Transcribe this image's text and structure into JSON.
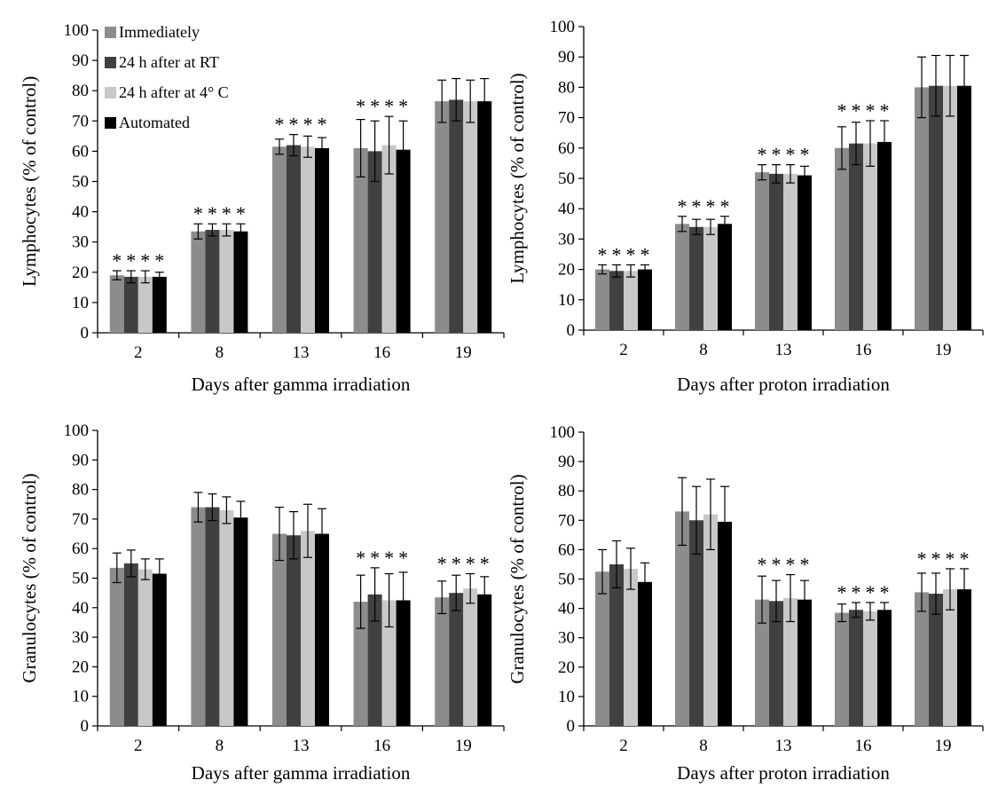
{
  "colors": {
    "series": [
      "#8c8c8c",
      "#404040",
      "#c8c8c8",
      "#000000"
    ],
    "axis": "#000000"
  },
  "legend": {
    "items": [
      "Immediately",
      "24 h after at RT",
      "24 h after at 4° C",
      "Automated"
    ]
  },
  "significance_marker": "*",
  "chart_data": [
    {
      "type": "bar",
      "ylabel": "Lymphocytes (% of control)",
      "xlabel": "Days after gamma irradiation",
      "categories": [
        "2",
        "8",
        "13",
        "16",
        "19"
      ],
      "ylim": [
        0,
        100
      ],
      "yticks": [
        0,
        10,
        20,
        30,
        40,
        50,
        60,
        70,
        80,
        90,
        100
      ],
      "grid": false,
      "legend_position": "top-left",
      "series": [
        {
          "name": "Immediately",
          "values": [
            19,
            33.5,
            61.5,
            61,
            76.5
          ],
          "errors": [
            1.5,
            2.5,
            2.5,
            9.5,
            7
          ]
        },
        {
          "name": "24 h after at RT",
          "values": [
            18.5,
            34,
            62,
            60,
            77
          ],
          "errors": [
            2,
            2,
            3.5,
            10,
            7
          ]
        },
        {
          "name": "24 h after at 4° C",
          "values": [
            18.5,
            34,
            61.5,
            62,
            76.5
          ],
          "errors": [
            2,
            2,
            3.5,
            9.5,
            7
          ]
        },
        {
          "name": "Automated",
          "values": [
            18.5,
            33.5,
            61,
            60.5,
            76.5
          ],
          "errors": [
            1.5,
            2.5,
            3.5,
            9.5,
            7.5
          ]
        }
      ],
      "significant": [
        true,
        true,
        true,
        true,
        false
      ]
    },
    {
      "type": "bar",
      "ylabel": "Lymphocytes (% of control)",
      "xlabel": "Days after proton irradiation",
      "categories": [
        "2",
        "8",
        "13",
        "16",
        "19"
      ],
      "ylim": [
        0,
        100
      ],
      "yticks": [
        0,
        10,
        20,
        30,
        40,
        50,
        60,
        70,
        80,
        90,
        100
      ],
      "grid": false,
      "series": [
        {
          "name": "Immediately",
          "values": [
            20,
            35,
            52,
            60,
            80
          ],
          "errors": [
            1.5,
            2.5,
            2.5,
            7,
            10
          ]
        },
        {
          "name": "24 h after at RT",
          "values": [
            19.5,
            34,
            51.5,
            61.5,
            80.5
          ],
          "errors": [
            2,
            2.5,
            3,
            7,
            10
          ]
        },
        {
          "name": "24 h after at 4° C",
          "values": [
            19.5,
            34,
            51.5,
            61.5,
            80.5
          ],
          "errors": [
            2,
            2.5,
            3,
            7.5,
            10
          ]
        },
        {
          "name": "Automated",
          "values": [
            20,
            35,
            51,
            62,
            80.5
          ],
          "errors": [
            1.5,
            2.5,
            3,
            7,
            10
          ]
        }
      ],
      "significant": [
        true,
        true,
        true,
        true,
        false
      ]
    },
    {
      "type": "bar",
      "ylabel": "Granulocytes (% of control)",
      "xlabel": "Days after gamma irradiation",
      "categories": [
        "2",
        "8",
        "13",
        "16",
        "19"
      ],
      "ylim": [
        0,
        100
      ],
      "yticks": [
        0,
        10,
        20,
        30,
        40,
        50,
        60,
        70,
        80,
        90,
        100
      ],
      "grid": false,
      "series": [
        {
          "name": "Immediately",
          "values": [
            53.5,
            74,
            65,
            42,
            43.5
          ],
          "errors": [
            5,
            5,
            9,
            9,
            5.5
          ]
        },
        {
          "name": "24 h after at RT",
          "values": [
            55,
            74,
            64.5,
            44.5,
            45
          ],
          "errors": [
            4.5,
            4.5,
            8,
            9,
            6
          ]
        },
        {
          "name": "24 h after at 4° C",
          "values": [
            53,
            73,
            66,
            42.5,
            46.5
          ],
          "errors": [
            3.5,
            4.5,
            9,
            9,
            5
          ]
        },
        {
          "name": "Automated",
          "values": [
            51.5,
            70.5,
            65,
            42.5,
            44.5
          ],
          "errors": [
            5,
            5.5,
            8.5,
            9.5,
            6
          ]
        }
      ],
      "significant": [
        false,
        false,
        false,
        true,
        true
      ]
    },
    {
      "type": "bar",
      "ylabel": "Granulocytes (% of control)",
      "xlabel": "Days after proton irradiation",
      "categories": [
        "2",
        "8",
        "13",
        "16",
        "19"
      ],
      "ylim": [
        0,
        100
      ],
      "yticks": [
        0,
        10,
        20,
        30,
        40,
        50,
        60,
        70,
        80,
        90,
        100
      ],
      "grid": false,
      "series": [
        {
          "name": "Immediately",
          "values": [
            52.5,
            73,
            43,
            38.5,
            45.5
          ],
          "errors": [
            7.5,
            11.5,
            8,
            3,
            6.5
          ]
        },
        {
          "name": "24 h after at RT",
          "values": [
            55,
            70,
            42.5,
            39.5,
            45
          ],
          "errors": [
            8,
            11.5,
            7,
            2.5,
            7
          ]
        },
        {
          "name": "24 h after at 4° C",
          "values": [
            53.5,
            72,
            43.5,
            39,
            46.5
          ],
          "errors": [
            7,
            12,
            8,
            3,
            7
          ]
        },
        {
          "name": "Automated",
          "values": [
            49,
            69.5,
            43,
            39.5,
            46.5
          ],
          "errors": [
            6.5,
            12,
            6.5,
            2.5,
            7
          ]
        }
      ],
      "significant": [
        false,
        false,
        true,
        true,
        true
      ]
    }
  ]
}
